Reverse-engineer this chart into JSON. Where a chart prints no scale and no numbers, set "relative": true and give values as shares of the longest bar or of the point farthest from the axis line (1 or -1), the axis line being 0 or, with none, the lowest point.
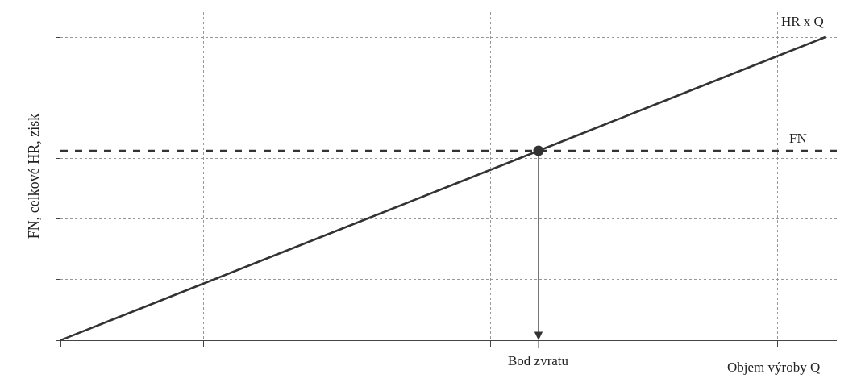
{
  "chart_data": {
    "type": "line",
    "relative": true,
    "xlabel": "Objem výroby Q",
    "ylabel": "FN, celkové HR, zisk",
    "categories": [
      null,
      null,
      null,
      null,
      null,
      null,
      null,
      null,
      null,
      null,
      null,
      null,
      null,
      null,
      null,
      null,
      null
    ],
    "annotations": [
      "Bod zvratu"
    ],
    "series": [
      {
        "name": "HR x Q",
        "color": "#333333",
        "values": [
          0,
          0.0625,
          0.125,
          0.1875,
          0.25,
          0.3125,
          0.375,
          0.4375,
          0.5,
          0.5625,
          0.625,
          0.6875,
          0.75,
          0.8125,
          0.875,
          0.9375,
          1
        ]
      }
    ],
    "ref_lines": [
      {
        "axis": "y",
        "value": 0.625,
        "label": "FN",
        "color": "#333333",
        "line_style": "dashed"
      }
    ],
    "grid": true,
    "line_style": "solid",
    "marker": "none"
  }
}
